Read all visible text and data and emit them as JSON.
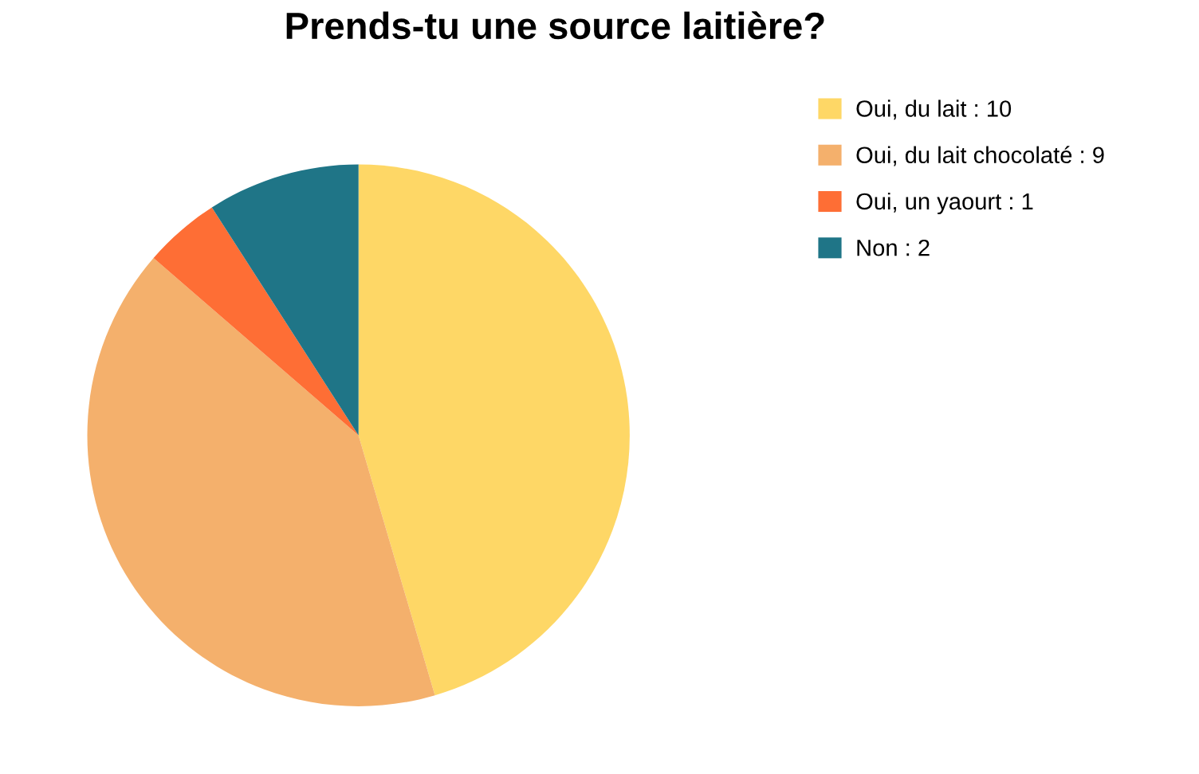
{
  "chart_data": {
    "type": "pie",
    "title": "Prends-tu une source laitière?",
    "categories": [
      "Oui, du lait : 10",
      "Oui, du lait chocolaté : 9",
      "Oui, un yaourt : 1",
      "Non : 2"
    ],
    "values": [
      10,
      9,
      1,
      2
    ],
    "colors": [
      "#fed766",
      "#f4b06c",
      "#fe6e35",
      "#1f7587"
    ],
    "legend": "top right"
  }
}
